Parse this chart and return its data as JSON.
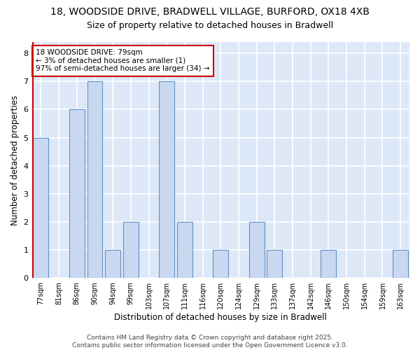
{
  "title1": "18, WOODSIDE DRIVE, BRADWELL VILLAGE, BURFORD, OX18 4XB",
  "title2": "Size of property relative to detached houses in Bradwell",
  "xlabel": "Distribution of detached houses by size in Bradwell",
  "ylabel": "Number of detached properties",
  "categories": [
    "77sqm",
    "81sqm",
    "86sqm",
    "90sqm",
    "94sqm",
    "99sqm",
    "103sqm",
    "107sqm",
    "111sqm",
    "116sqm",
    "120sqm",
    "124sqm",
    "129sqm",
    "133sqm",
    "137sqm",
    "142sqm",
    "146sqm",
    "150sqm",
    "154sqm",
    "159sqm",
    "163sqm"
  ],
  "values": [
    5,
    0,
    6,
    7,
    1,
    2,
    0,
    7,
    2,
    0,
    1,
    0,
    2,
    1,
    0,
    0,
    1,
    0,
    0,
    0,
    1
  ],
  "bar_color": "#c8d8f0",
  "bar_edge_color": "#6090c8",
  "highlight_bar_index": 0,
  "highlight_edge_color": "#cc0000",
  "annotation_text": "18 WOODSIDE DRIVE: 79sqm\n← 3% of detached houses are smaller (1)\n97% of semi-detached houses are larger (34) →",
  "annotation_box_color": "#ffffff",
  "annotation_box_edge_color": "#cc0000",
  "ylim": [
    0,
    8.4
  ],
  "yticks": [
    0,
    1,
    2,
    3,
    4,
    5,
    6,
    7,
    8
  ],
  "footer": "Contains HM Land Registry data © Crown copyright and database right 2025.\nContains public sector information licensed under the Open Government Licence v3.0.",
  "bg_color": "#ffffff",
  "plot_bg_color": "#dce8f8",
  "grid_color": "#ffffff",
  "title_fontsize": 10,
  "subtitle_fontsize": 9,
  "annot_fontsize": 7.5,
  "tick_fontsize": 7,
  "ylabel_fontsize": 8.5,
  "xlabel_fontsize": 8.5,
  "footer_fontsize": 6.5
}
